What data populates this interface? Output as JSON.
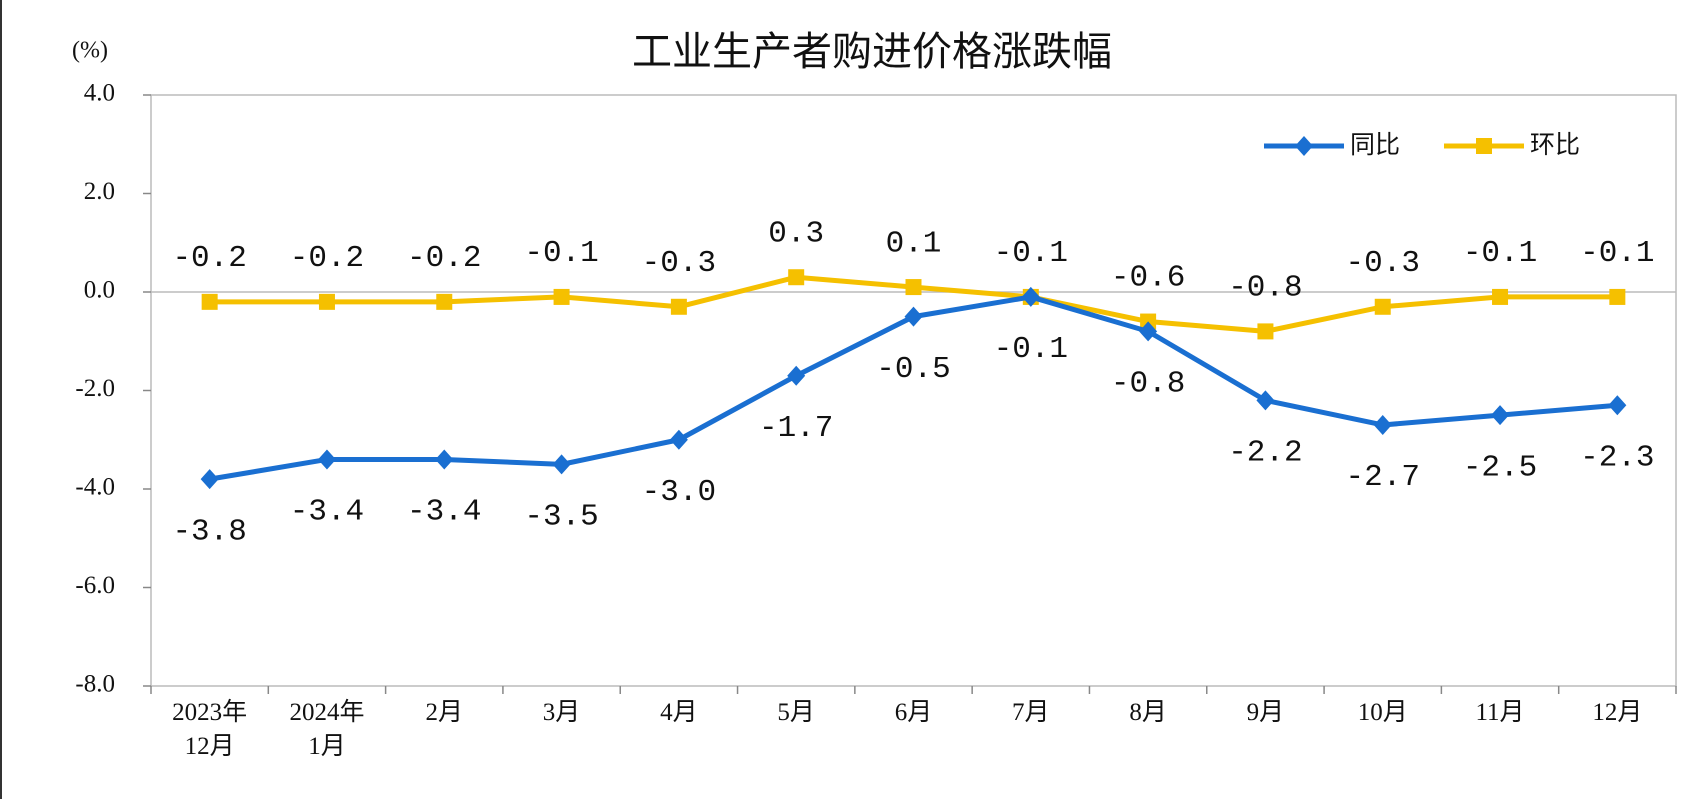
{
  "chart_data": {
    "type": "line",
    "title": "工业生产者购进价格涨跌幅",
    "y_label": "(%)",
    "categories": [
      "2023年12月",
      "2024年1月",
      "2月",
      "3月",
      "4月",
      "5月",
      "6月",
      "7月",
      "8月",
      "9月",
      "10月",
      "11月",
      "12月"
    ],
    "series": [
      {
        "name": "同比",
        "color": "#1a6fd1",
        "marker": "diamond",
        "label_position": "below",
        "values": [
          -3.8,
          -3.4,
          -3.4,
          -3.5,
          -3.0,
          -1.7,
          -0.5,
          -0.1,
          -0.8,
          -2.2,
          -2.7,
          -2.5,
          -2.3
        ],
        "value_labels": [
          "-3.8",
          "-3.4",
          "-3.4",
          "-3.5",
          "-3.0",
          "-1.7",
          "-0.5",
          "-0.1",
          "-0.8",
          "-2.2",
          "-2.7",
          "-2.5",
          "-2.3"
        ]
      },
      {
        "name": "环比",
        "color": "#f5c000",
        "marker": "square",
        "label_position": "above",
        "values": [
          -0.2,
          -0.2,
          -0.2,
          -0.1,
          -0.3,
          0.3,
          0.1,
          -0.1,
          -0.6,
          -0.8,
          -0.3,
          -0.1,
          -0.1
        ],
        "value_labels": [
          "-0.2",
          "-0.2",
          "-0.2",
          "-0.1",
          "-0.3",
          "0.3",
          "0.1",
          "-0.1",
          "-0.6",
          "-0.8",
          "-0.3",
          "-0.1",
          "-0.1"
        ]
      }
    ],
    "ylim": [
      -8,
      4
    ],
    "yticks": [
      {
        "value": -8,
        "label": "-8.0"
      },
      {
        "value": -6,
        "label": "-6.0"
      },
      {
        "value": -4,
        "label": "-4.0"
      },
      {
        "value": -2,
        "label": "-2.0"
      },
      {
        "value": 0,
        "label": "0.0"
      },
      {
        "value": 2,
        "label": "2.0"
      },
      {
        "value": 4,
        "label": "4.0"
      }
    ],
    "grid": false,
    "legend": "top-right"
  }
}
